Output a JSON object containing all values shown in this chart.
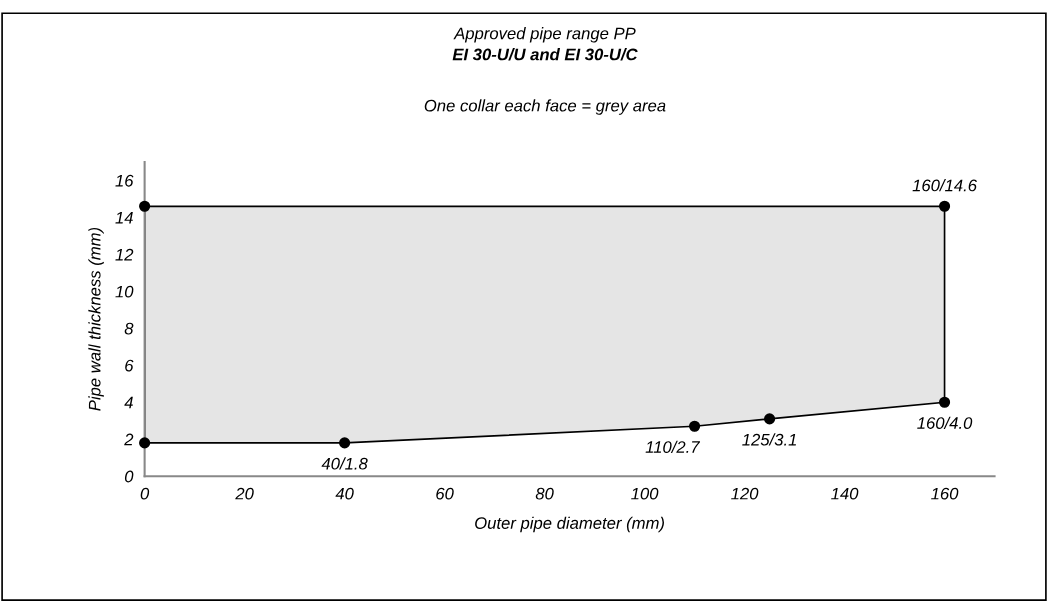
{
  "chart_data": {
    "type": "area",
    "title": "Approved pipe range PP",
    "subtitle": "EI 30-U/U and EI 30-U/C",
    "xlabel": "Outer pipe diameter (mm)",
    "ylabel": "Pipe wall thickness (mm)",
    "xlim": [
      0,
      170
    ],
    "xticks": [
      0,
      20,
      40,
      60,
      80,
      100,
      120,
      140,
      160
    ],
    "ylim": [
      0,
      17
    ],
    "yticks": [
      0,
      2,
      4,
      6,
      8,
      10,
      12,
      14,
      16
    ],
    "grid": false,
    "legend": false,
    "series": [
      {
        "color": "#e5e5e5",
        "marker": "circle",
        "x": [
          0,
          40,
          110,
          125,
          160,
          160,
          0
        ],
        "values": [
          1.8,
          1.8,
          2.7,
          3.1,
          4.0,
          14.6,
          14.6
        ]
      }
    ],
    "annotations": [
      "One collar each face = grey area",
      {
        "text": "160/14.6",
        "x": 160,
        "y": 14.6
      },
      {
        "text": "40/1.8",
        "x": 40,
        "y": 1.8
      },
      {
        "text": "110/2.7",
        "x": 110,
        "y": 2.7
      },
      {
        "text": "125/3.1",
        "x": 125,
        "y": 3.1
      },
      {
        "text": "160/4.0",
        "x": 160,
        "y": 4.0
      }
    ]
  }
}
